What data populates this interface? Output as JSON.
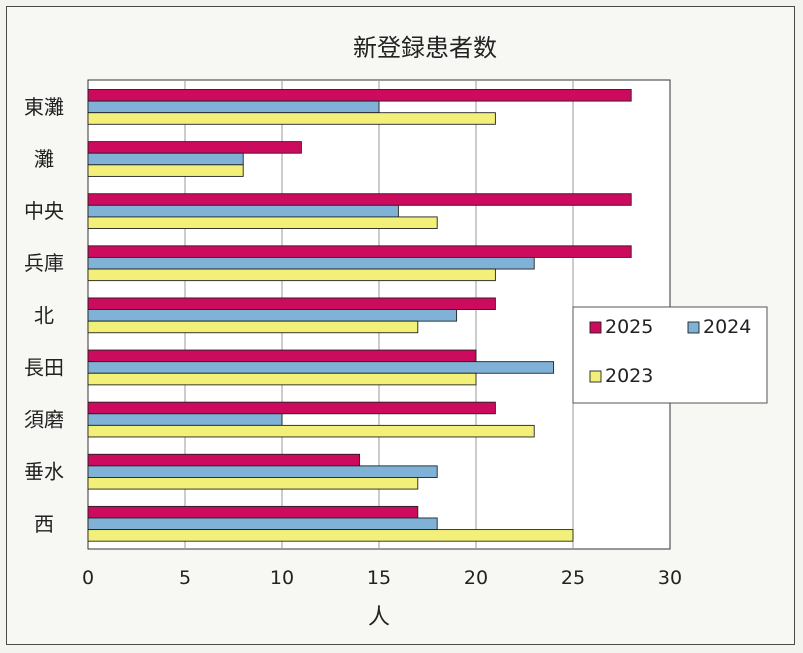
{
  "chart_data": {
    "type": "bar",
    "orientation": "horizontal",
    "title": "新登録患者数",
    "xlabel": "人",
    "ylabel": "",
    "xlim": [
      0,
      30
    ],
    "x_ticks": [
      "0",
      "5",
      "10",
      "15",
      "20",
      "25",
      "30"
    ],
    "categories": [
      "東灘",
      "灘",
      "中央",
      "兵庫",
      "北",
      "長田",
      "須磨",
      "垂水",
      "西"
    ],
    "series": [
      {
        "name": "2025",
        "color": "#cc0a5e",
        "values": [
          28,
          11,
          28,
          28,
          21,
          20,
          21,
          14,
          17
        ]
      },
      {
        "name": "2024",
        "color": "#7fb2d6",
        "values": [
          15,
          8,
          16,
          23,
          19,
          24,
          10,
          18,
          18
        ]
      },
      {
        "name": "2023",
        "color": "#f3f07a",
        "values": [
          21,
          8,
          18,
          21,
          17,
          20,
          23,
          17,
          25
        ]
      }
    ],
    "grid": "vertical",
    "legend_position": "right"
  }
}
